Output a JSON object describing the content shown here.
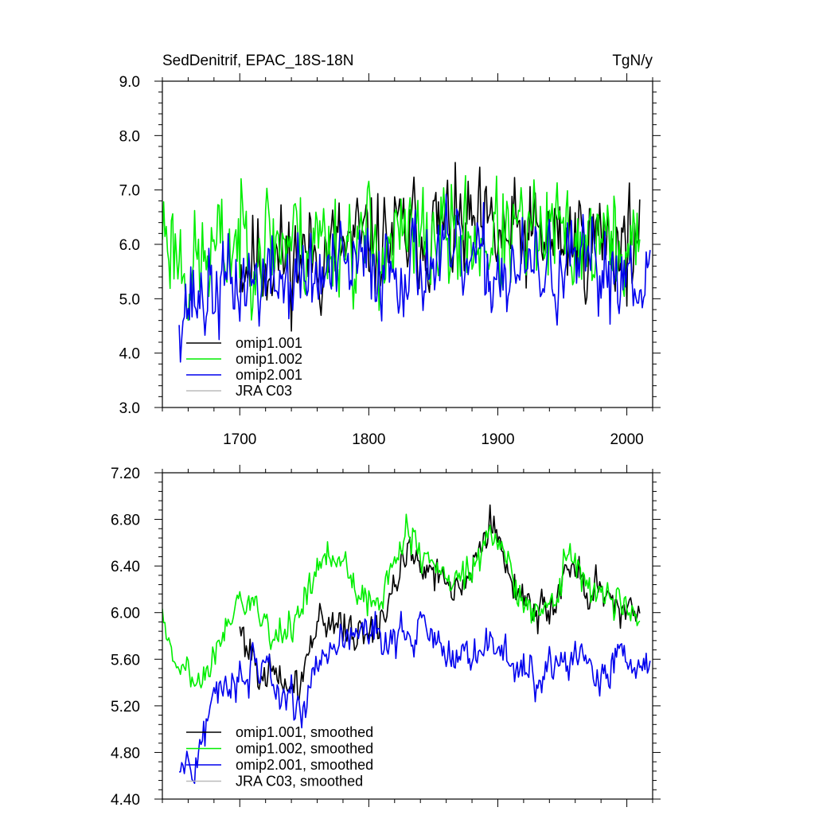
{
  "chart_data": [
    {
      "type": "line",
      "title": "SedDenitrif, EPAC_18S-18N",
      "units": "TgN/y",
      "xlim": [
        1640,
        2020
      ],
      "ylim": [
        3.0,
        9.0
      ],
      "xticks": [
        1700,
        1800,
        1900,
        2000
      ],
      "yticks": [
        3.0,
        4.0,
        5.0,
        6.0,
        7.0,
        8.0,
        9.0
      ],
      "ytick_labels": [
        "3.0",
        "4.0",
        "5.0",
        "6.0",
        "7.0",
        "8.0",
        "9.0"
      ],
      "legend": "bottom-left",
      "series": [
        {
          "name": "omip1.001",
          "color": "#000000",
          "x_range": [
            1700,
            2010
          ],
          "mean": [
            [
              1700,
              5.7
            ],
            [
              1760,
              5.8
            ],
            [
              1800,
              6.0
            ],
            [
              1860,
              6.3
            ],
            [
              1900,
              6.1
            ],
            [
              1960,
              6.1
            ],
            [
              2010,
              6.1
            ]
          ],
          "amp": 0.95,
          "seed": 11
        },
        {
          "name": "omip1.002",
          "color": "#00ee00",
          "x_range": [
            1640,
            2010
          ],
          "mean": [
            [
              1640,
              6.4
            ],
            [
              1660,
              5.5
            ],
            [
              1700,
              6.1
            ],
            [
              1760,
              6.1
            ],
            [
              1800,
              6.0
            ],
            [
              1860,
              6.1
            ],
            [
              1900,
              6.1
            ],
            [
              1960,
              6.1
            ],
            [
              2010,
              5.9
            ]
          ],
          "amp": 1.0,
          "seed": 23
        },
        {
          "name": "omip2.001",
          "color": "#0000ee",
          "x_range": [
            1653,
            2018
          ],
          "mean": [
            [
              1653,
              4.9
            ],
            [
              1700,
              5.3
            ],
            [
              1760,
              5.4
            ],
            [
              1800,
              5.6
            ],
            [
              1860,
              5.7
            ],
            [
              1900,
              5.5
            ],
            [
              1960,
              5.5
            ],
            [
              2018,
              5.6
            ]
          ],
          "amp": 0.85,
          "seed": 37
        },
        {
          "name": "JRA C03",
          "color": "#bbbbbb",
          "x_range": [],
          "mean": [],
          "amp": 0,
          "seed": 0
        }
      ]
    },
    {
      "type": "line",
      "title": "",
      "units": "",
      "xlim": [
        1640,
        2020
      ],
      "ylim": [
        4.4,
        7.2
      ],
      "xticks": [
        1700,
        1800,
        1900,
        2000
      ],
      "yticks": [
        4.4,
        4.8,
        5.2,
        5.6,
        6.0,
        6.4,
        6.8,
        7.2
      ],
      "ytick_labels": [
        "4.40",
        "4.80",
        "5.20",
        "5.60",
        "6.00",
        "6.40",
        "6.80",
        "7.20"
      ],
      "legend": "bottom-left",
      "series": [
        {
          "name": "omip1.001, smoothed",
          "color": "#000000",
          "x_range": [
            1700,
            2010
          ],
          "mean": [
            [
              1700,
              5.85
            ],
            [
              1720,
              5.45
            ],
            [
              1745,
              5.35
            ],
            [
              1760,
              5.9
            ],
            [
              1775,
              5.95
            ],
            [
              1790,
              5.8
            ],
            [
              1810,
              5.9
            ],
            [
              1830,
              6.55
            ],
            [
              1845,
              6.4
            ],
            [
              1865,
              6.2
            ],
            [
              1885,
              6.5
            ],
            [
              1895,
              6.75
            ],
            [
              1910,
              6.3
            ],
            [
              1925,
              6.0
            ],
            [
              1945,
              6.05
            ],
            [
              1955,
              6.5
            ],
            [
              1970,
              6.2
            ],
            [
              1990,
              6.1
            ],
            [
              2010,
              5.95
            ]
          ],
          "amp": 0.16,
          "seed": 101
        },
        {
          "name": "omip1.002, smoothed",
          "color": "#00ee00",
          "x_range": [
            1640,
            2010
          ],
          "mean": [
            [
              1640,
              6.1
            ],
            [
              1648,
              5.6
            ],
            [
              1660,
              5.55
            ],
            [
              1668,
              5.35
            ],
            [
              1682,
              5.75
            ],
            [
              1698,
              6.15
            ],
            [
              1710,
              6.1
            ],
            [
              1725,
              5.8
            ],
            [
              1745,
              5.95
            ],
            [
              1760,
              6.35
            ],
            [
              1768,
              6.5
            ],
            [
              1785,
              6.35
            ],
            [
              1800,
              6.05
            ],
            [
              1815,
              6.3
            ],
            [
              1830,
              6.7
            ],
            [
              1845,
              6.4
            ],
            [
              1860,
              6.3
            ],
            [
              1880,
              6.3
            ],
            [
              1895,
              6.7
            ],
            [
              1910,
              6.3
            ],
            [
              1925,
              5.95
            ],
            [
              1945,
              6.05
            ],
            [
              1955,
              6.55
            ],
            [
              1970,
              6.2
            ],
            [
              1990,
              6.1
            ],
            [
              2010,
              5.9
            ]
          ],
          "amp": 0.15,
          "seed": 202
        },
        {
          "name": "omip2.001, smoothed",
          "color": "#0000ee",
          "x_range": [
            1653,
            2018
          ],
          "mean": [
            [
              1653,
              4.65
            ],
            [
              1665,
              4.75
            ],
            [
              1680,
              5.25
            ],
            [
              1695,
              5.4
            ],
            [
              1715,
              5.55
            ],
            [
              1735,
              5.3
            ],
            [
              1750,
              5.2
            ],
            [
              1762,
              5.6
            ],
            [
              1780,
              5.85
            ],
            [
              1800,
              5.85
            ],
            [
              1820,
              5.8
            ],
            [
              1840,
              5.85
            ],
            [
              1860,
              5.65
            ],
            [
              1880,
              5.6
            ],
            [
              1900,
              5.75
            ],
            [
              1920,
              5.45
            ],
            [
              1940,
              5.5
            ],
            [
              1960,
              5.7
            ],
            [
              1975,
              5.4
            ],
            [
              1990,
              5.55
            ],
            [
              2018,
              5.55
            ]
          ],
          "amp": 0.17,
          "seed": 303
        },
        {
          "name": "JRA C03, smoothed",
          "color": "#bbbbbb",
          "x_range": [],
          "mean": [],
          "amp": 0,
          "seed": 0
        }
      ]
    }
  ]
}
